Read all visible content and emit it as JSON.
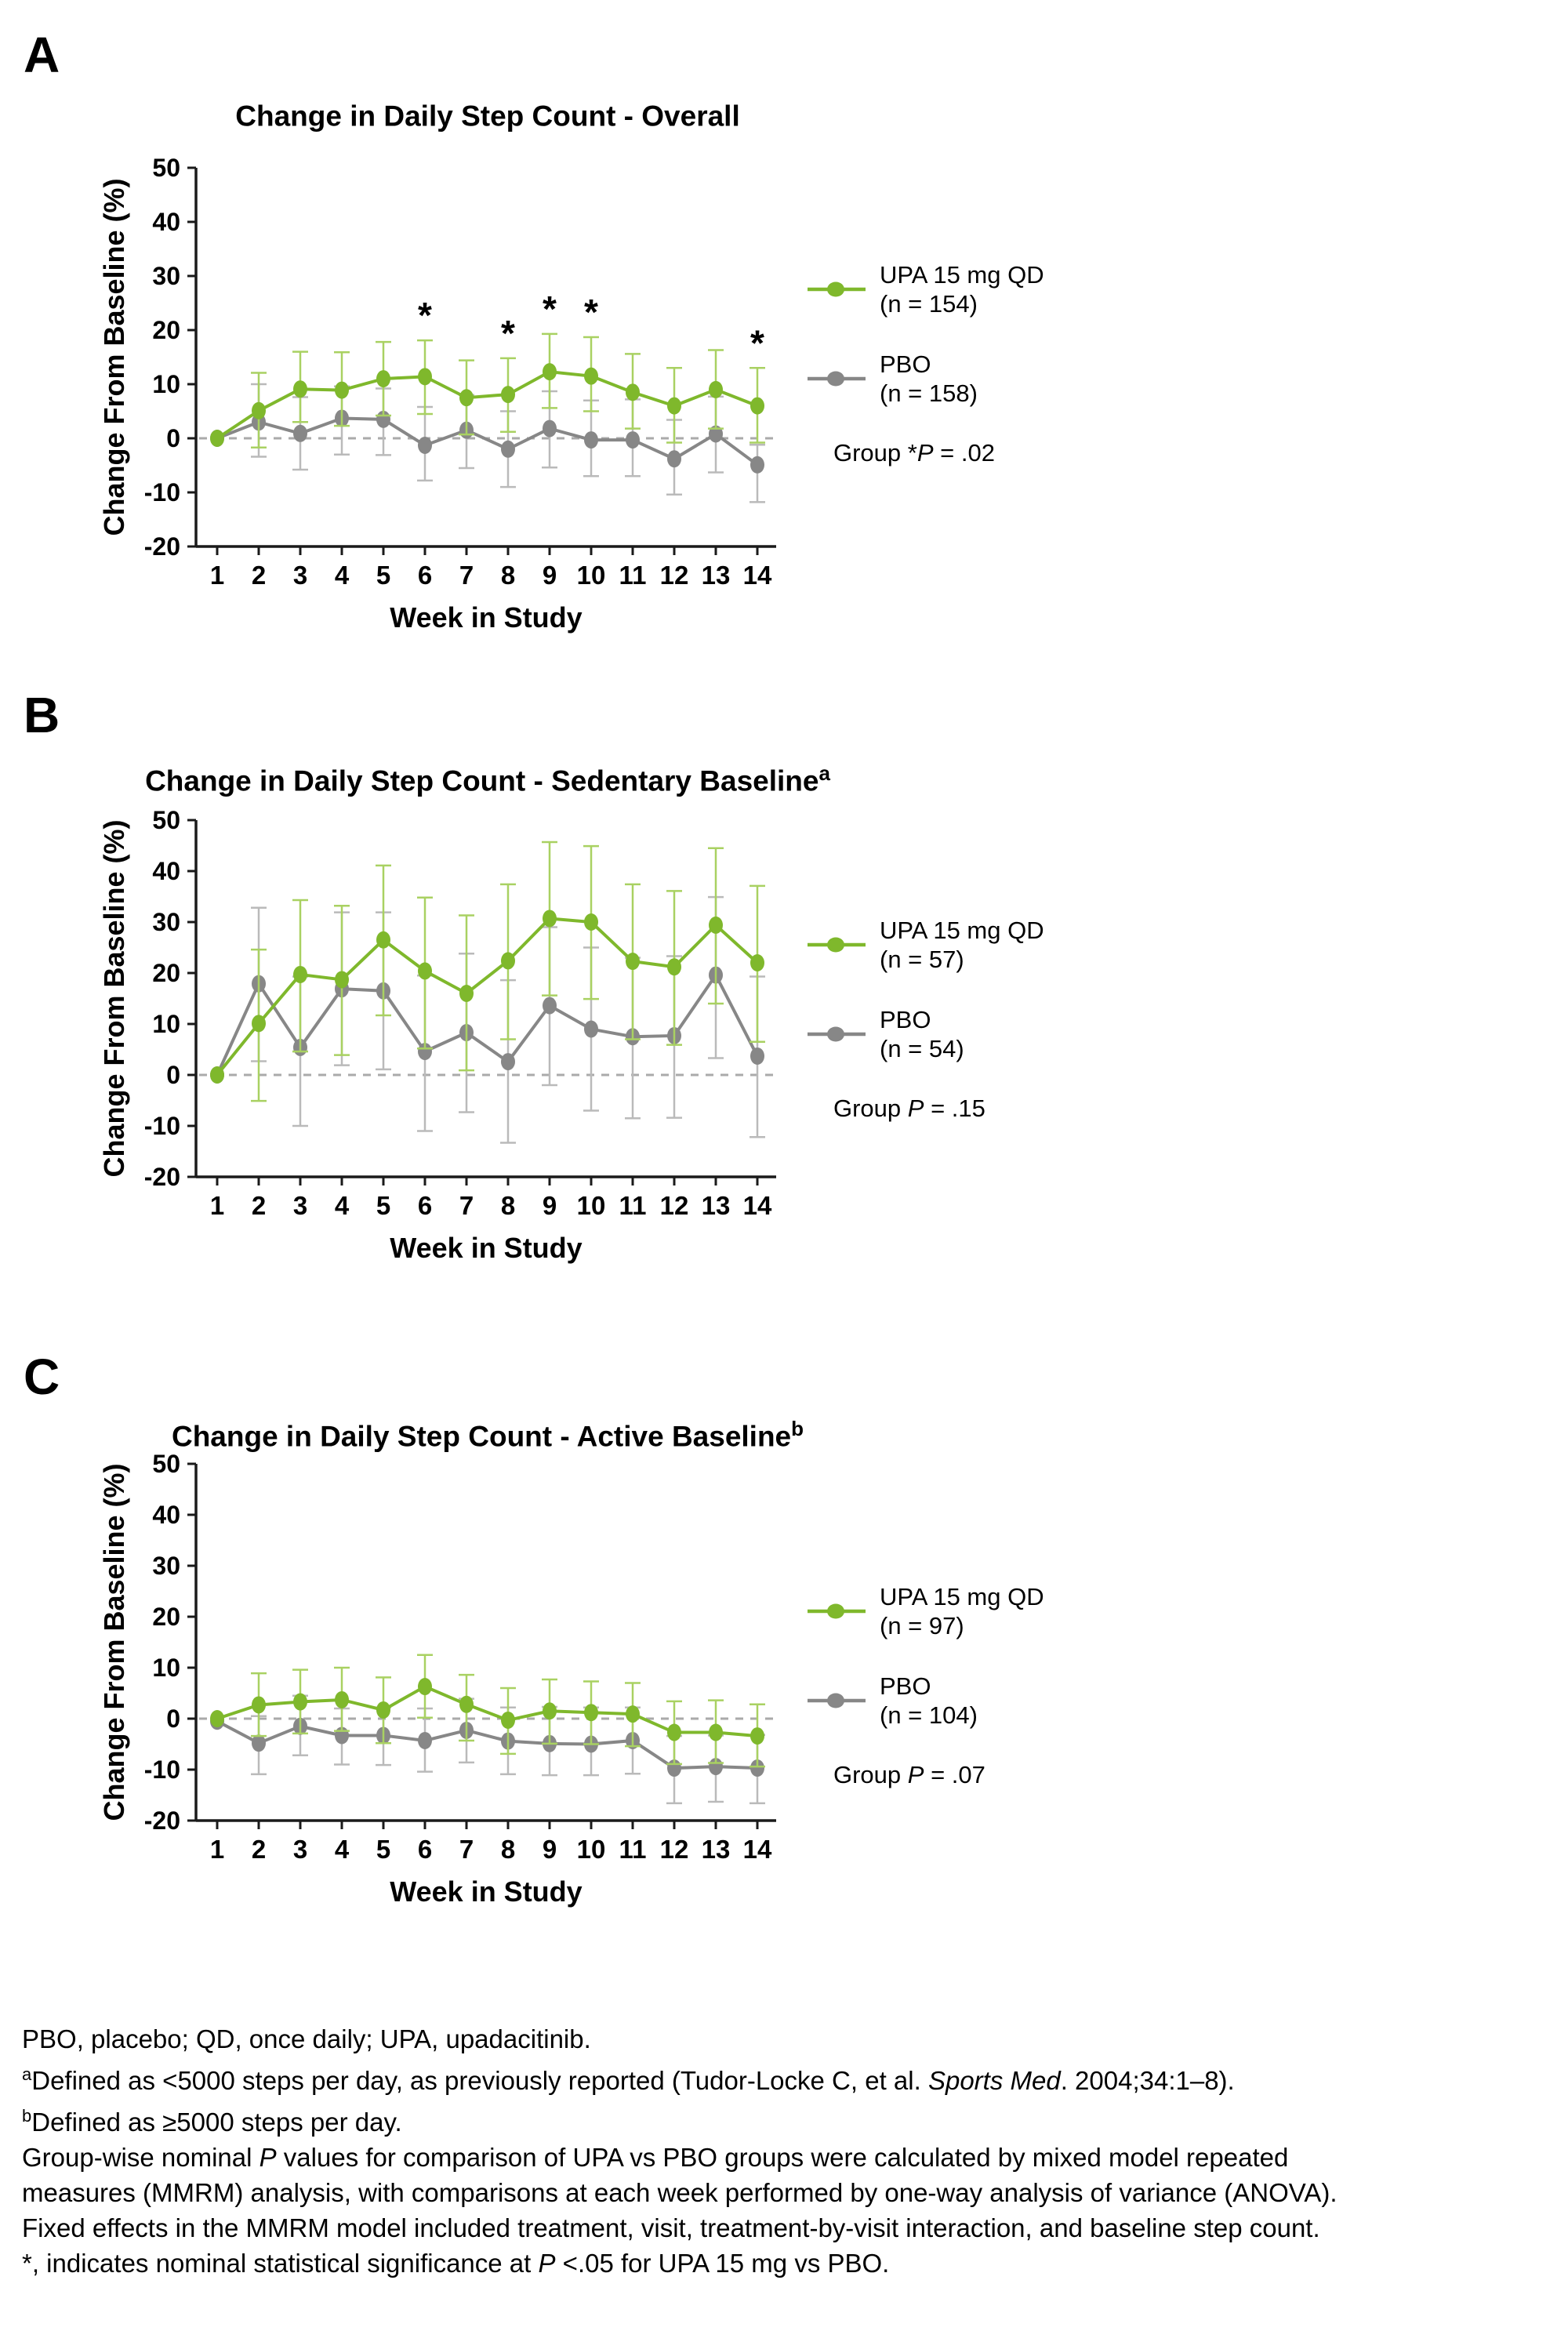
{
  "colors": {
    "upa": "#7fb82c",
    "upa_err": "#a9d162",
    "pbo": "#878787",
    "pbo_err": "#bababa",
    "baseline_dash": "#aaaaaa",
    "axis": "#1a1a1a"
  },
  "panels": [
    {
      "letter": "A",
      "title": "Change in Daily Step Count - Overall",
      "title_sup": "",
      "legend": {
        "upa_label": "UPA 15 mg QD",
        "upa_n": "(n = 154)",
        "pbo_label": "PBO",
        "pbo_n": "(n = 158)",
        "group_p": [
          {
            "t": "Group *"
          },
          {
            "t": "P",
            "i": true
          },
          {
            "t": " = .02"
          }
        ]
      }
    },
    {
      "letter": "B",
      "title": "Change in Daily Step Count - Sedentary Baseline",
      "title_sup": "a",
      "legend": {
        "upa_label": "UPA 15 mg QD",
        "upa_n": "(n = 57)",
        "pbo_label": "PBO",
        "pbo_n": "(n = 54)",
        "group_p": [
          {
            "t": "Group "
          },
          {
            "t": "P",
            "i": true
          },
          {
            "t": " = .15"
          }
        ]
      }
    },
    {
      "letter": "C",
      "title": "Change in Daily Step Count - Active Baseline",
      "title_sup": "b",
      "legend": {
        "upa_label": "UPA 15 mg QD",
        "upa_n": "(n = 97)",
        "pbo_label": "PBO",
        "pbo_n": "(n = 104)",
        "group_p": [
          {
            "t": "Group "
          },
          {
            "t": "P",
            "i": true
          },
          {
            "t": " = .07"
          }
        ]
      }
    }
  ],
  "chart_data": [
    {
      "type": "line",
      "title": "Change in Daily Step Count - Overall",
      "xlabel": "Week in Study",
      "ylabel": "Change From Baseline (%)",
      "x": [
        1,
        2,
        3,
        4,
        5,
        6,
        7,
        8,
        9,
        10,
        11,
        12,
        13,
        14
      ],
      "ylim": [
        -20,
        50
      ],
      "yticks": [
        50,
        40,
        30,
        20,
        10,
        0,
        -10,
        -20
      ],
      "zero_reference_line": true,
      "grid": false,
      "legend_position": "right",
      "significant_weeks": [
        6,
        8,
        9,
        10,
        14
      ],
      "group_p_value": ".02",
      "series": [
        {
          "name": "UPA 15 mg QD (n = 154)",
          "color_key": "upa",
          "values": [
            0,
            5.1,
            9.1,
            8.9,
            11.0,
            11.4,
            7.5,
            8.1,
            12.3,
            11.5,
            8.5,
            6.0,
            9.0,
            6.0
          ],
          "err_upper": [
            null,
            12.1,
            16.0,
            15.9,
            17.8,
            18.1,
            14.4,
            14.8,
            19.3,
            18.7,
            15.6,
            13.0,
            16.3,
            13.0
          ],
          "err_lower": [
            null,
            -1.7,
            3.0,
            2.3,
            4.2,
            4.5,
            0.7,
            1.2,
            5.6,
            5.0,
            1.8,
            -0.8,
            1.8,
            -0.8
          ]
        },
        {
          "name": "PBO (n = 158)",
          "color_key": "pbo",
          "values": [
            0,
            3.0,
            0.9,
            3.7,
            3.5,
            -1.3,
            1.5,
            -2.0,
            1.8,
            -0.3,
            -0.3,
            -3.8,
            0.8,
            -4.9
          ],
          "err_upper": [
            null,
            10.0,
            7.6,
            9.6,
            9.2,
            5.8,
            8.0,
            5.0,
            8.7,
            7.0,
            7.2,
            3.4,
            7.7,
            -1.2
          ],
          "err_lower": [
            null,
            -3.4,
            -5.8,
            -3.0,
            -3.1,
            -7.8,
            -5.5,
            -9.0,
            -5.4,
            -7.0,
            -7.0,
            -10.4,
            -6.3,
            -11.8
          ]
        }
      ]
    },
    {
      "type": "line",
      "title": "Change in Daily Step Count - Sedentary Baseline (a)",
      "xlabel": "Week in Study",
      "ylabel": "Change From Baseline (%)",
      "x": [
        1,
        2,
        3,
        4,
        5,
        6,
        7,
        8,
        9,
        10,
        11,
        12,
        13,
        14
      ],
      "ylim": [
        -20,
        50
      ],
      "yticks": [
        50,
        40,
        30,
        20,
        10,
        0,
        -10,
        -20
      ],
      "zero_reference_line": true,
      "grid": false,
      "legend_position": "right",
      "significant_weeks": [],
      "group_p_value": ".15",
      "series": [
        {
          "name": "UPA 15 mg QD (n = 57)",
          "color_key": "upa",
          "values": [
            0,
            10.1,
            19.7,
            18.7,
            26.5,
            20.4,
            16.0,
            22.4,
            30.7,
            30.0,
            22.3,
            21.2,
            29.4,
            22.0
          ],
          "err_upper": [
            null,
            24.6,
            34.3,
            33.2,
            41.1,
            34.8,
            31.3,
            37.4,
            45.7,
            44.9,
            37.4,
            36.1,
            44.5,
            37.1
          ],
          "err_lower": [
            null,
            -5.1,
            4.6,
            3.9,
            11.7,
            5.2,
            0.9,
            7.0,
            15.6,
            14.9,
            7.0,
            5.9,
            14.0,
            6.5
          ]
        },
        {
          "name": "PBO (n = 54)",
          "color_key": "pbo",
          "values": [
            0,
            17.9,
            5.4,
            16.9,
            16.5,
            4.6,
            8.3,
            2.6,
            13.6,
            9.0,
            7.5,
            7.7,
            19.6,
            3.7
          ],
          "err_upper": [
            null,
            32.8,
            19.3,
            31.9,
            31.9,
            19.5,
            23.8,
            18.6,
            29.0,
            25.0,
            23.0,
            23.3,
            34.9,
            19.3
          ],
          "err_lower": [
            null,
            2.7,
            -10.0,
            1.9,
            1.1,
            -11.0,
            -7.3,
            -13.3,
            -2.0,
            -7.0,
            -8.5,
            -8.4,
            3.3,
            -12.2
          ]
        }
      ]
    },
    {
      "type": "line",
      "title": "Change in Daily Step Count - Active Baseline (b)",
      "xlabel": "Week in Study",
      "ylabel": "Change From Baseline (%)",
      "x": [
        1,
        2,
        3,
        4,
        5,
        6,
        7,
        8,
        9,
        10,
        11,
        12,
        13,
        14
      ],
      "ylim": [
        -20,
        50
      ],
      "yticks": [
        50,
        40,
        30,
        20,
        10,
        0,
        -10,
        -20
      ],
      "zero_reference_line": true,
      "grid": false,
      "legend_position": "right",
      "significant_weeks": [],
      "group_p_value": ".07",
      "series": [
        {
          "name": "UPA 15 mg QD (n = 97)",
          "color_key": "upa",
          "values": [
            0,
            2.7,
            3.3,
            3.7,
            1.7,
            6.3,
            2.8,
            -0.3,
            1.5,
            1.2,
            0.9,
            -2.7,
            -2.7,
            -3.4
          ],
          "err_upper": [
            null,
            8.9,
            9.6,
            10.0,
            8.1,
            12.5,
            8.6,
            6.0,
            7.7,
            7.3,
            7.0,
            3.4,
            3.6,
            2.8
          ],
          "err_lower": [
            null,
            -3.4,
            -2.9,
            -2.4,
            -4.8,
            0.2,
            -4.3,
            -6.9,
            -4.9,
            -5.0,
            -5.4,
            -8.9,
            -8.7,
            -9.4
          ]
        },
        {
          "name": "PBO (n = 104)",
          "color_key": "pbo",
          "values": [
            -0.5,
            -4.8,
            -1.5,
            -3.3,
            -3.3,
            -4.3,
            -2.3,
            -4.4,
            -4.9,
            -5.0,
            -4.3,
            -9.7,
            -9.4,
            -9.7
          ],
          "err_upper": [
            null,
            0.5,
            4.5,
            2.0,
            2.2,
            2.0,
            3.9,
            2.2,
            2.3,
            2.2,
            2.2,
            -3.4,
            -3.3,
            -3.2
          ],
          "err_lower": [
            null,
            -10.9,
            -7.2,
            -9.0,
            -9.1,
            -10.4,
            -8.6,
            -10.9,
            -11.1,
            -11.1,
            -10.8,
            -16.6,
            -16.3,
            -16.6
          ]
        }
      ]
    }
  ],
  "footnotes": [
    [
      {
        "t": "PBO, placebo; QD, once daily; UPA, upadacitinib."
      }
    ],
    [
      {
        "t": "a",
        "s": true
      },
      {
        "t": "Defined as <5000 steps per day, as previously reported (Tudor-Locke C, et al. "
      },
      {
        "t": "Sports Med",
        "i": true
      },
      {
        "t": ". 2004;34:1–8)."
      }
    ],
    [
      {
        "t": "b",
        "s": true
      },
      {
        "t": "Defined as ≥5000 steps per day."
      }
    ],
    [
      {
        "t": "Group-wise nominal "
      },
      {
        "t": "P",
        "i": true
      },
      {
        "t": " values for comparison of UPA vs PBO groups were calculated by mixed model repeated"
      }
    ],
    [
      {
        "t": "measures (MMRM) analysis, with comparisons at each week performed by one-way analysis of variance (ANOVA)."
      }
    ],
    [
      {
        "t": "Fixed effects in the MMRM model included treatment, visit, treatment-by-visit interaction, and baseline step count."
      }
    ],
    [
      {
        "t": "*, indicates nominal statistical significance at "
      },
      {
        "t": "P",
        "i": true
      },
      {
        "t": " <.05 for UPA 15 mg vs PBO."
      }
    ]
  ]
}
